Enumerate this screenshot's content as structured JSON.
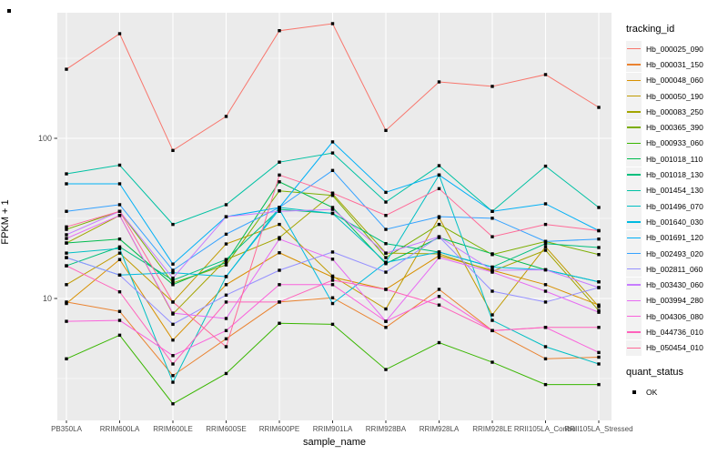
{
  "legend": {
    "tracking_title": "tracking_id",
    "quant_title": "quant_status",
    "quant_items": [
      {
        "label": "OK",
        "marker": "black-square"
      }
    ]
  },
  "chart_data": {
    "type": "line",
    "title": "",
    "xlabel": "sample_name",
    "ylabel": "FPKM + 1",
    "y_scale": "log10",
    "ylim": [
      1.73,
      608
    ],
    "y_major_ticks": [
      10,
      100
    ],
    "y_tick_labels": [
      "10",
      "100"
    ],
    "y_minor_gridlines": [
      3.162,
      31.623,
      316.228
    ],
    "grid": "on",
    "legend_position": "right",
    "panel_background": "#EBEBEB",
    "gridline_color": "#FFFFFF",
    "axis_text_color": "#4D4D4D",
    "tick_mark_color": "#333333",
    "point_marker": "filled-black-square",
    "quant_status_all_points": "OK",
    "categories": [
      "PB350LA",
      "RRIM600LA",
      "RRIM600LE",
      "RRIM600SE",
      "RRIM600PE",
      "RRIM901LA",
      "RRIM928BA",
      "RRIM928LA",
      "RRIM928LE",
      "RRII105LA_Control",
      "RRII105LA_Stressed"
    ],
    "series": [
      {
        "name": "Hb_000025_090",
        "color": "#F8766D",
        "values": [
          270,
          450,
          84,
          137,
          470,
          520,
          112,
          225,
          211,
          250,
          156
        ]
      },
      {
        "name": "Hb_000031_150",
        "color": "#EA8331",
        "values": [
          9.5,
          8.3,
          3.3,
          5.6,
          9.5,
          10.1,
          6.6,
          11.4,
          6.3,
          4.2,
          4.3
        ]
      },
      {
        "name": "Hb_000048_060",
        "color": "#D89000",
        "values": [
          9.3,
          17.5,
          5.5,
          12.2,
          19.3,
          13.6,
          11.4,
          18.5,
          15.0,
          12.2,
          9.1
        ]
      },
      {
        "name": "Hb_000050_190",
        "color": "#C09B00",
        "values": [
          12.2,
          19.2,
          9.5,
          21.9,
          29.0,
          13.8,
          8.6,
          32.0,
          7.9,
          21.0,
          8.9
        ]
      },
      {
        "name": "Hb_000083_250",
        "color": "#A3A500",
        "values": [
          22.2,
          33.0,
          8.0,
          17.5,
          24.0,
          45.0,
          19.2,
          19.0,
          14.8,
          20.0,
          8.4
        ]
      },
      {
        "name": "Hb_000365_390",
        "color": "#7CAE00",
        "values": [
          27.0,
          35.0,
          12.5,
          16.2,
          47.0,
          44.0,
          18.0,
          29.0,
          18.8,
          22.7,
          18.8
        ]
      },
      {
        "name": "Hb_000933_060",
        "color": "#39B600",
        "values": [
          4.2,
          5.9,
          2.2,
          3.4,
          7.0,
          6.9,
          3.6,
          5.3,
          4.0,
          2.9,
          2.9
        ]
      },
      {
        "name": "Hb_001018_110",
        "color": "#00BB4E",
        "values": [
          22.2,
          23.5,
          12.2,
          16.8,
          53.5,
          37.0,
          16.5,
          24.0,
          19.0,
          15.1,
          12.7
        ]
      },
      {
        "name": "Hb_001018_130",
        "color": "#00BF7D",
        "values": [
          16.0,
          21.0,
          13.0,
          17.5,
          36.0,
          34.0,
          22.0,
          19.5,
          15.7,
          22.0,
          20.8
        ]
      },
      {
        "name": "Hb_001454_130",
        "color": "#00C1A3",
        "values": [
          60,
          68,
          29,
          38.5,
          71,
          81,
          40,
          67.5,
          35,
          67,
          37
        ]
      },
      {
        "name": "Hb_001496_070",
        "color": "#00BFC4",
        "values": [
          19.2,
          20.5,
          3.0,
          13.7,
          37.0,
          34.0,
          16.8,
          59.0,
          7.3,
          5.0,
          3.9
        ]
      },
      {
        "name": "Hb_001640_030",
        "color": "#00BAE0",
        "values": [
          18.0,
          14.0,
          14.5,
          13.7,
          36.0,
          9.3,
          16.8,
          19.5,
          15.7,
          15.1,
          12.7
        ]
      },
      {
        "name": "Hb_001691_120",
        "color": "#00B0F6",
        "values": [
          52,
          52,
          16.4,
          32.4,
          37,
          95,
          46,
          59,
          35,
          39,
          26.5
        ]
      },
      {
        "name": "Hb_002493_020",
        "color": "#35A2FF",
        "values": [
          35,
          38.5,
          15.0,
          25.2,
          37,
          63,
          27,
          32.4,
          31.7,
          22.7,
          23.5
        ]
      },
      {
        "name": "Hb_002811_060",
        "color": "#9590FF",
        "values": [
          18.0,
          14.0,
          6.9,
          10.5,
          15.0,
          19.5,
          14.6,
          24.3,
          11.1,
          9.5,
          11.7
        ]
      },
      {
        "name": "Hb_003430_060",
        "color": "#C77CFF",
        "values": [
          25.0,
          35.0,
          13.4,
          32.4,
          35.0,
          36.0,
          19.2,
          24.3,
          15.0,
          15.1,
          11.7
        ]
      },
      {
        "name": "Hb_003994_280",
        "color": "#E76BF3",
        "values": [
          23.7,
          33.0,
          8.1,
          7.5,
          23.5,
          17.6,
          7.2,
          18.0,
          14.6,
          11.1,
          8.2
        ]
      },
      {
        "name": "Hb_004306_080",
        "color": "#FA62DB",
        "values": [
          7.2,
          7.3,
          4.4,
          6.3,
          12.2,
          12.2,
          7.2,
          10.3,
          6.3,
          6.6,
          4.6
        ]
      },
      {
        "name": "Hb_044736_010",
        "color": "#FF62BC",
        "values": [
          16.0,
          11.0,
          3.9,
          9.5,
          9.5,
          13.0,
          11.4,
          9.1,
          6.3,
          6.6,
          6.6
        ]
      },
      {
        "name": "Hb_050454_010",
        "color": "#FF6A98",
        "values": [
          28,
          35,
          9.5,
          5.0,
          59,
          45.5,
          33,
          48.5,
          24.3,
          29,
          26.5
        ]
      }
    ]
  }
}
